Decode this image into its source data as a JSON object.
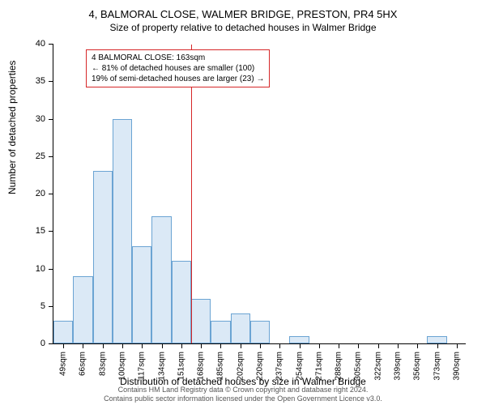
{
  "chart": {
    "type": "histogram",
    "title_line1": "4, BALMORAL CLOSE, WALMER BRIDGE, PRESTON, PR4 5HX",
    "title_line2": "Size of property relative to detached houses in Walmer Bridge",
    "ylabel": "Number of detached properties",
    "xlabel": "Distribution of detached houses by size in Walmer Bridge",
    "ylim": [
      0,
      40
    ],
    "ytick_step": 5,
    "yticks": [
      0,
      5,
      10,
      15,
      20,
      25,
      30,
      35,
      40
    ],
    "categories": [
      "49sqm",
      "66sqm",
      "83sqm",
      "100sqm",
      "117sqm",
      "134sqm",
      "151sqm",
      "168sqm",
      "185sqm",
      "202sqm",
      "220sqm",
      "237sqm",
      "254sqm",
      "271sqm",
      "288sqm",
      "305sqm",
      "322sqm",
      "339sqm",
      "356sqm",
      "373sqm",
      "390sqm"
    ],
    "values": [
      3,
      9,
      23,
      30,
      13,
      17,
      11,
      6,
      3,
      4,
      3,
      0,
      1,
      0,
      0,
      0,
      0,
      0,
      0,
      1,
      0
    ],
    "bar_fill": "#dbe9f6",
    "bar_stroke": "#6ba4d3",
    "vline_color": "#d62728",
    "vline_at_category_index": 7,
    "background": "#ffffff",
    "axis_color": "#000000",
    "label_fontsize": 12,
    "tick_fontsize": 11,
    "title_fontsize": 13,
    "infobox": {
      "border_color": "#d62728",
      "line1": "4 BALMORAL CLOSE: 163sqm",
      "line2": "← 81% of detached houses are smaller (100)",
      "line3": "19% of semi-detached houses are larger (23) →"
    },
    "footer_line1": "Contains HM Land Registry data © Crown copyright and database right 2024.",
    "footer_line2": "Contains public sector information licensed under the Open Government Licence v3.0."
  }
}
